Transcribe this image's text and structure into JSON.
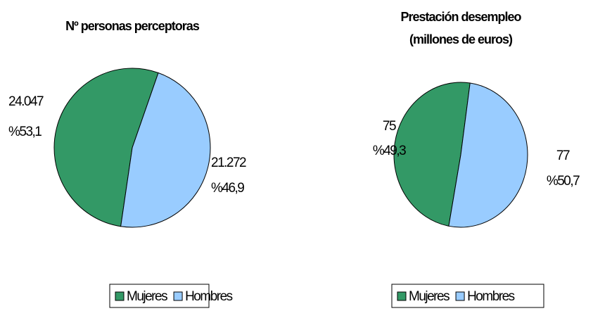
{
  "chart_data": [
    {
      "type": "pie",
      "title": [
        "Nº personas perceptoras"
      ],
      "categories": [
        "Mujeres",
        "Hombres"
      ],
      "colors": [
        "#339966",
        "#99ccff"
      ],
      "values": [
        24047,
        21272
      ],
      "value_labels": [
        "24.047",
        "21.272"
      ],
      "percentages": [
        53.1,
        46.9
      ],
      "percentage_labels": [
        "%53,1",
        "%46,9"
      ]
    },
    {
      "type": "pie",
      "title": [
        "Prestación desempleo",
        "(millones de euros)"
      ],
      "categories": [
        "Mujeres",
        "Hombres"
      ],
      "colors": [
        "#339966",
        "#99ccff"
      ],
      "values": [
        75,
        77
      ],
      "percentages": [
        49.3,
        50.7
      ],
      "percentage_labels": [
        "%49,3",
        "%50,7"
      ]
    }
  ]
}
